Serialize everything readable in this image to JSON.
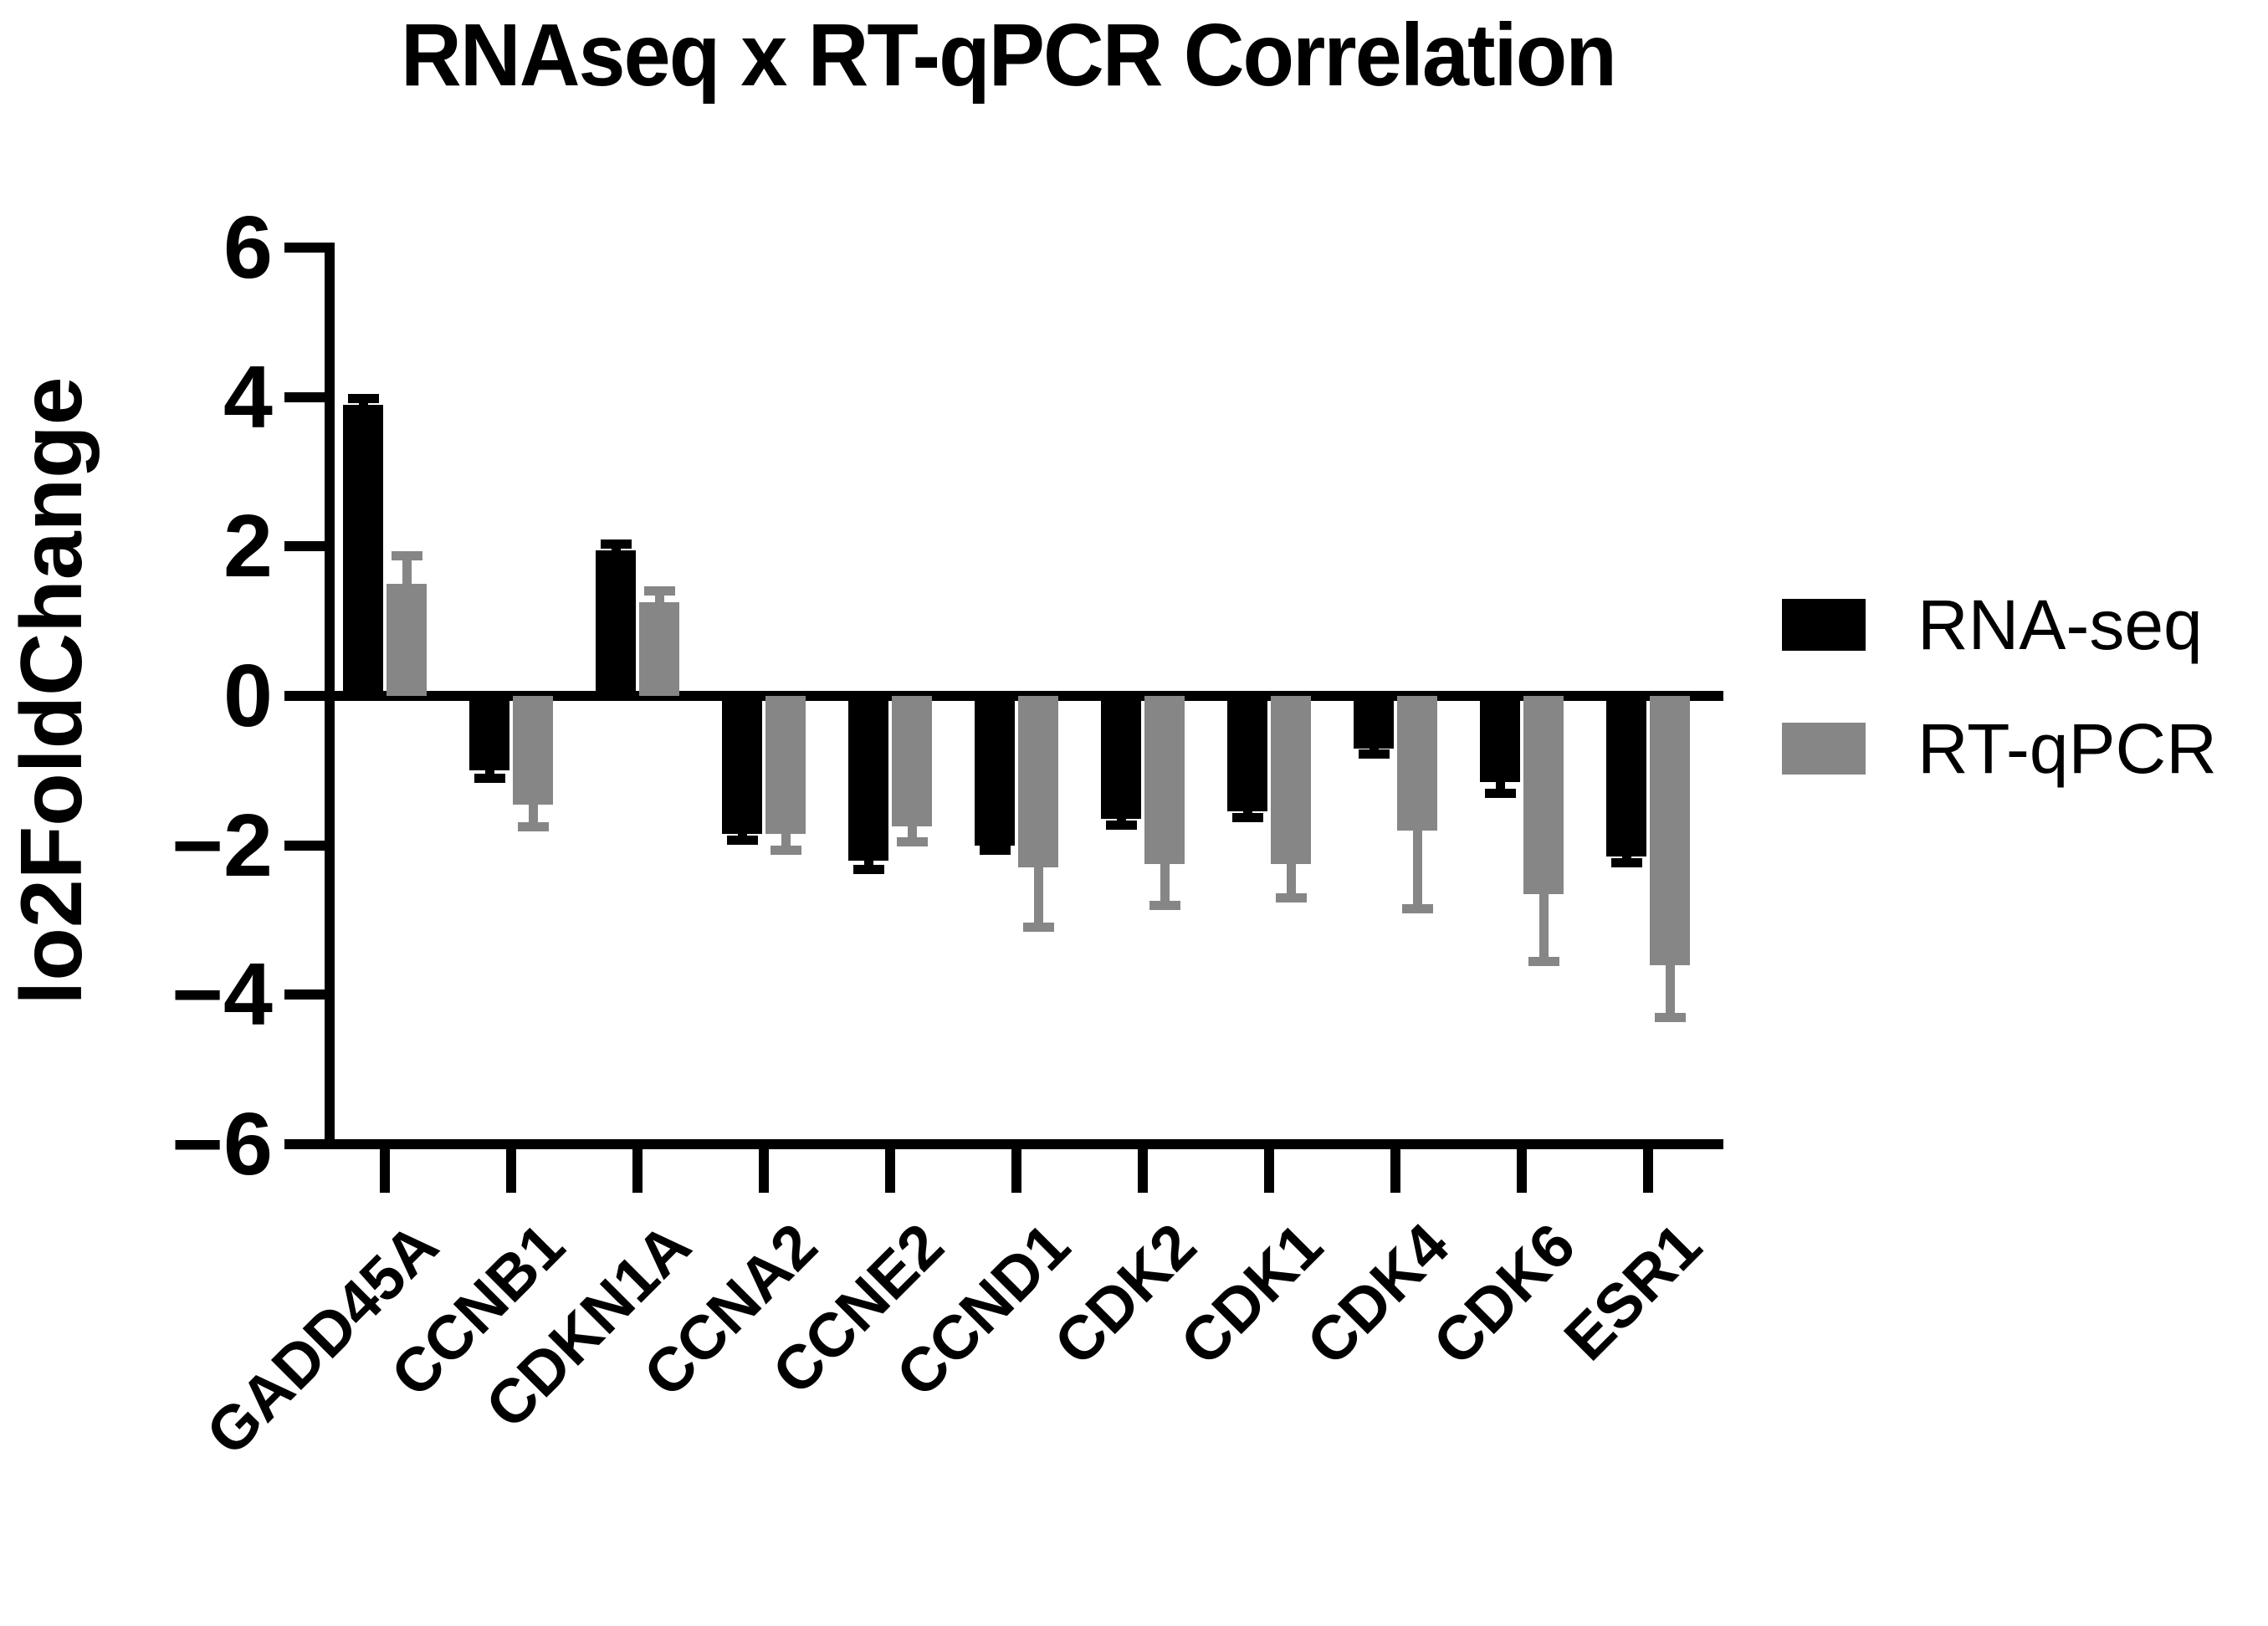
{
  "chart_data": {
    "type": "bar",
    "title": "RNAseq x RT-qPCR Correlation",
    "ylabel": "lo2FoldChange",
    "xlabel": "",
    "categories": [
      "GADD45A",
      "CCNB1",
      "CDKN1A",
      "CCNA2",
      "CCNE2",
      "CCND1",
      "CDK2",
      "CDK1",
      "CDK4",
      "CDK6",
      "ESR1"
    ],
    "series": [
      {
        "name": "RNA-seq",
        "color": "#000000",
        "values": [
          3.9,
          -1.0,
          1.95,
          -1.85,
          -2.2,
          -2.0,
          -1.65,
          -1.55,
          -0.7,
          -1.15,
          -2.15
        ],
        "errors": [
          0.08,
          0.1,
          0.08,
          0.08,
          0.12,
          0.06,
          0.08,
          0.08,
          0.08,
          0.15,
          0.08
        ]
      },
      {
        "name": "RT-qPCR",
        "color": "#868686",
        "values": [
          1.5,
          -1.45,
          1.25,
          -1.85,
          -1.75,
          -2.3,
          -2.25,
          -2.25,
          -1.8,
          -2.65,
          -3.6
        ],
        "errors": [
          0.38,
          0.3,
          0.15,
          0.22,
          0.2,
          0.8,
          0.55,
          0.45,
          1.05,
          0.9,
          0.7
        ]
      }
    ],
    "ylim": [
      -6,
      6
    ],
    "yticks": [
      6,
      4,
      2,
      0,
      -2,
      -4,
      -6
    ],
    "error_direction": "outward",
    "grid": false,
    "legend_position": "right",
    "axis_color": "#000000",
    "background_color": "#ffffff"
  }
}
